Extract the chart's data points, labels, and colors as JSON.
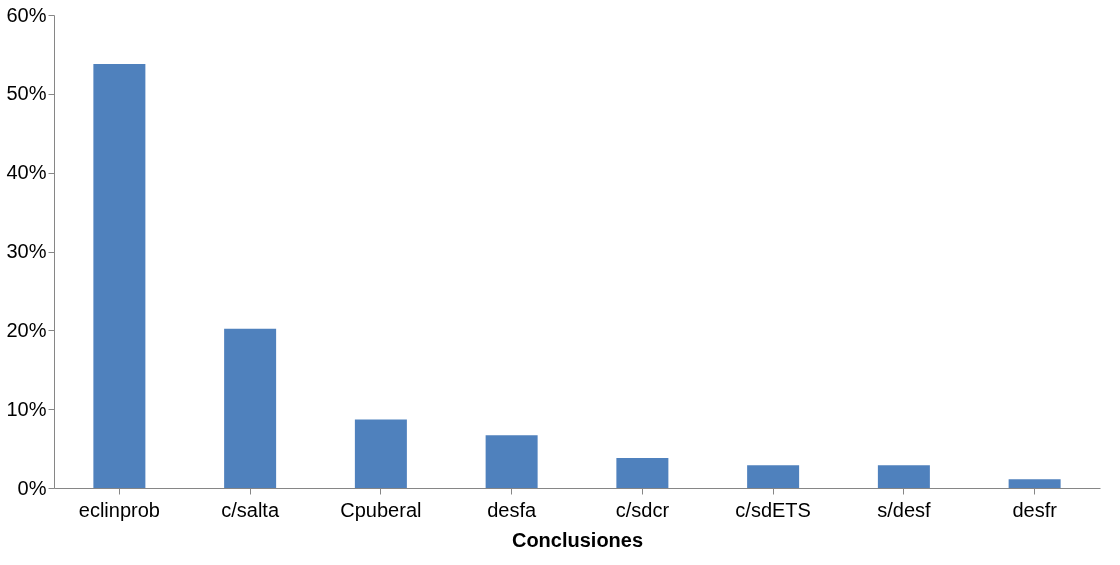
{
  "chart_data": {
    "type": "bar",
    "xlabel": "Conclusiones",
    "categories": [
      "eclinprob",
      "c/salta",
      "Cpuberal",
      "desfa",
      "c/sdcr",
      "c/sdETS",
      "s/desf",
      "desfr"
    ],
    "values": [
      53.8,
      20.2,
      8.7,
      6.7,
      3.8,
      2.9,
      2.9,
      1.1
    ],
    "color": "#4f81bd",
    "ylim": [
      0,
      60
    ],
    "yticks": [
      {
        "value": 0,
        "label": "0%"
      },
      {
        "value": 10,
        "label": "10%"
      },
      {
        "value": 20,
        "label": "20%"
      },
      {
        "value": 30,
        "label": "30%"
      },
      {
        "value": 40,
        "label": "40%"
      },
      {
        "value": 50,
        "label": "50%"
      },
      {
        "value": 60,
        "label": "60%"
      }
    ],
    "grid": false
  }
}
